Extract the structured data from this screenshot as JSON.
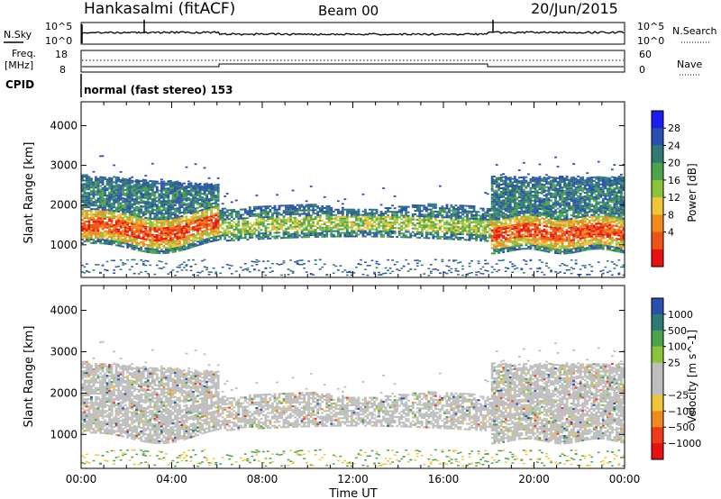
{
  "header": {
    "station": "Hankasalmi (fitACF)",
    "beam": "Beam 00",
    "date": "20/Jun/2015"
  },
  "nsky_panel": {
    "left_label": "N.Sky",
    "left_ticks": [
      "10^5",
      "10^0"
    ],
    "right_ticks": [
      "10^5",
      "10^0"
    ],
    "right_label": "N.Search"
  },
  "freq_panel": {
    "left_label_line1": "Freq.",
    "left_label_line2": "[MHz]",
    "left_ticks": [
      "18",
      "8"
    ],
    "right_ticks": [
      "60",
      "0"
    ],
    "right_label": "Nave"
  },
  "cpid": {
    "label": "CPID",
    "value": "normal (fast stereo) 153"
  },
  "chart_data": [
    {
      "type": "heatmap",
      "name": "Power",
      "ylabel": "Slant Range [km]",
      "xlabel": "",
      "ylim": [
        180,
        4600
      ],
      "yticks": [
        "4000",
        "3000",
        "2000",
        "1000"
      ],
      "colorbar_label": "Power [dB]",
      "colorbar_ticks": [
        "28",
        "24",
        "20",
        "16",
        "12",
        "8",
        "4"
      ],
      "colorbar_colors": [
        "#1c1cf0",
        "#2a4fb0",
        "#2f7a74",
        "#4ba44a",
        "#8bc33b",
        "#f0c53a",
        "#f08a1e",
        "#ee5318",
        "#e81010"
      ],
      "bands": [
        {
          "t0": 0.0,
          "t1": 6.0,
          "r0": 1000,
          "r1": 2850,
          "level": 9
        },
        {
          "t0": 6.0,
          "t1": 18.0,
          "r0": 1250,
          "r1": 2100,
          "level": 8
        },
        {
          "t0": 18.0,
          "t1": 24.0,
          "r0": 1050,
          "r1": 2800,
          "level": 12
        }
      ]
    },
    {
      "type": "heatmap",
      "name": "Velocity",
      "ylabel": "Slant Range [km]",
      "xlabel": "Time UT",
      "ylim": [
        180,
        4600
      ],
      "yticks": [
        "4000",
        "3000",
        "2000",
        "1000"
      ],
      "xticks": [
        "00:00",
        "04:00",
        "08:00",
        "12:00",
        "16:00",
        "20:00",
        "00:00"
      ],
      "colorbar_label": "Velocity [m s^-1]",
      "colorbar_ticks": [
        "1000",
        "500",
        "100",
        "25",
        "−25",
        "−100",
        "−500",
        "−1000"
      ],
      "colorbar_colors": [
        "#2a4fb0",
        "#2f7a74",
        "#4ba44a",
        "#8bc33b",
        "#bebebe",
        "#bebebe",
        "#f0c53a",
        "#f08a1e",
        "#ee3a18",
        "#e81010"
      ]
    }
  ]
}
